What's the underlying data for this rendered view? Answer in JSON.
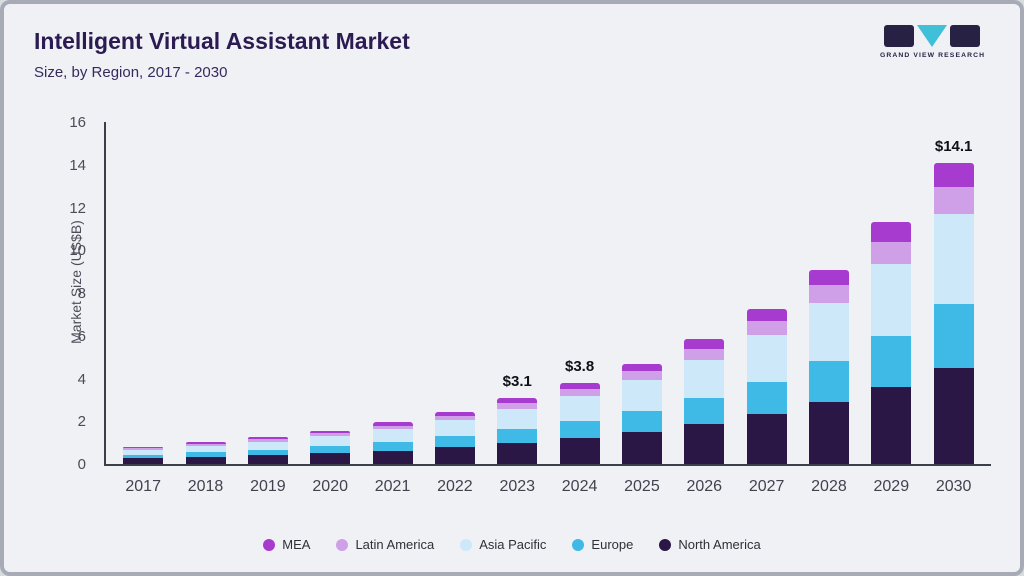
{
  "header": {
    "title": "Intelligent Virtual Assistant Market",
    "subtitle": "Size, by Region, 2017 - 2030"
  },
  "logo": {
    "text": "GRAND VIEW RESEARCH",
    "accent_color": "#3fc0d8",
    "dark_color": "#272243"
  },
  "chart_data": {
    "type": "bar",
    "stacked": true,
    "title": "Intelligent Virtual Assistant Market Size, by Region, 2017 - 2030",
    "ylabel": "Market Size (US$B)",
    "xlabel": "",
    "ylim": [
      0,
      16
    ],
    "yticks": [
      0,
      2,
      4,
      6,
      8,
      10,
      12,
      14,
      16
    ],
    "grid": false,
    "legend_position": "bottom",
    "categories": [
      "2017",
      "2018",
      "2019",
      "2020",
      "2021",
      "2022",
      "2023",
      "2024",
      "2025",
      "2026",
      "2027",
      "2028",
      "2029",
      "2030"
    ],
    "series": [
      {
        "name": "North America",
        "color": "#2a1745",
        "values": [
          0.26,
          0.33,
          0.41,
          0.5,
          0.63,
          0.8,
          1.0,
          1.22,
          1.51,
          1.87,
          2.32,
          2.91,
          3.62,
          4.51
        ]
      },
      {
        "name": "Europe",
        "color": "#3fb9e6",
        "values": [
          0.17,
          0.21,
          0.26,
          0.33,
          0.41,
          0.52,
          0.65,
          0.8,
          0.99,
          1.23,
          1.52,
          1.91,
          2.37,
          2.96
        ]
      },
      {
        "name": "Asia Pacific",
        "color": "#cde9f9",
        "values": [
          0.24,
          0.3,
          0.37,
          0.46,
          0.58,
          0.73,
          0.93,
          1.14,
          1.41,
          1.76,
          2.18,
          2.73,
          3.39,
          4.23
        ]
      },
      {
        "name": "Latin America",
        "color": "#cfa0e8",
        "values": [
          0.07,
          0.09,
          0.11,
          0.14,
          0.18,
          0.22,
          0.28,
          0.34,
          0.42,
          0.53,
          0.65,
          0.82,
          1.02,
          1.27
        ]
      },
      {
        "name": "MEA",
        "color": "#a83bcf",
        "values": [
          0.06,
          0.08,
          0.1,
          0.12,
          0.15,
          0.18,
          0.24,
          0.3,
          0.37,
          0.46,
          0.58,
          0.73,
          0.9,
          1.13
        ]
      }
    ],
    "totals": [
      0.8,
      1.01,
      1.25,
      1.55,
      1.95,
      2.45,
      3.1,
      3.8,
      4.7,
      5.85,
      7.25,
      9.1,
      11.3,
      14.1
    ],
    "bar_labels": {
      "2023": "$3.1",
      "2024": "$3.8",
      "2030": "$14.1"
    },
    "legend": [
      "MEA",
      "Latin America",
      "Asia Pacific",
      "Europe",
      "North America"
    ]
  }
}
